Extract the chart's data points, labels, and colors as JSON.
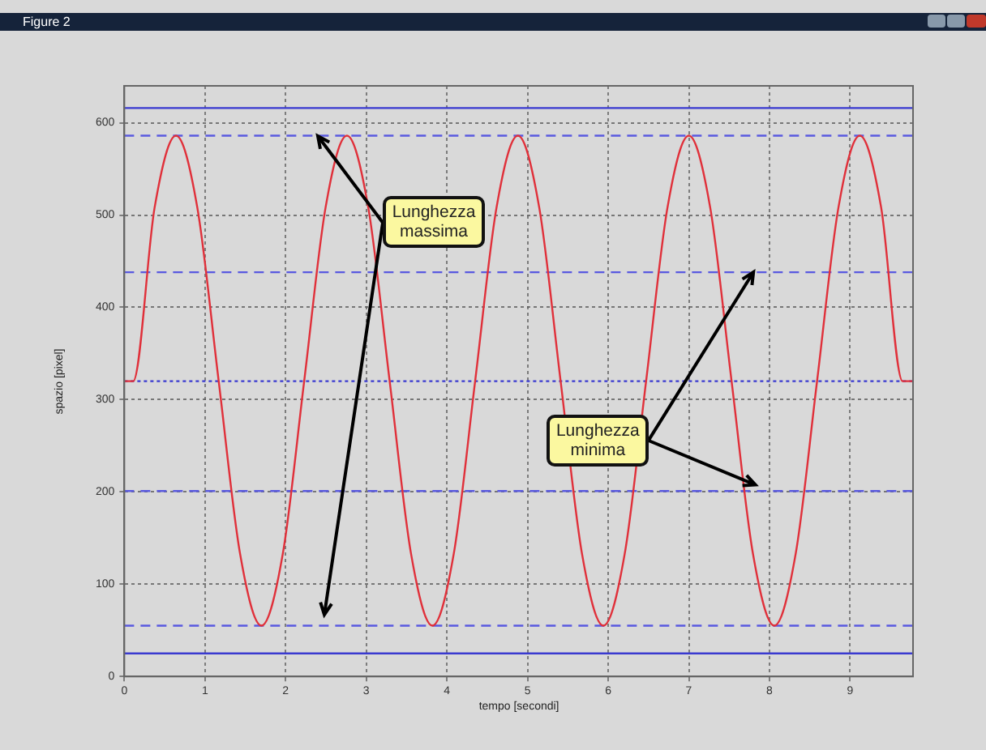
{
  "chart_data": {
    "type": "line",
    "title": "Figure 2",
    "xlabel": "tempo [secondi]",
    "ylabel": "spazio [pixel]",
    "x": [
      0,
      0.11,
      0.375,
      0.64,
      0.905,
      1.17,
      1.435,
      1.7,
      1.965,
      2.23,
      2.495,
      2.76,
      3.025,
      3.29,
      3.555,
      3.82,
      4.085,
      4.35,
      4.615,
      4.88,
      5.145,
      5.41,
      5.675,
      5.94,
      6.205,
      6.47,
      6.735,
      7.0,
      7.265,
      7.53,
      7.795,
      8.06,
      8.325,
      8.59,
      8.855,
      9.12,
      9.385,
      9.65,
      9.78
    ],
    "series": [
      {
        "color": "#e0303a",
        "values": [
          320,
          320,
          508,
          586,
          508,
          320,
          133,
          55,
          133,
          320,
          508,
          586,
          508,
          320,
          133,
          55,
          133,
          320,
          508,
          586,
          508,
          320,
          133,
          55,
          133,
          320,
          508,
          586,
          508,
          320,
          133,
          55,
          133,
          320,
          508,
          586,
          508,
          320,
          320
        ]
      }
    ],
    "xlim": [
      0,
      9.78
    ],
    "xticks": [
      0,
      1,
      2,
      3,
      4,
      5,
      6,
      7,
      8,
      9
    ],
    "ylim": [
      0,
      640
    ],
    "yticks": [
      0,
      100,
      200,
      300,
      400,
      500,
      600
    ],
    "grid": true,
    "legend": false,
    "marker": "none",
    "line_style": "solid",
    "ref_lines": [
      {
        "axis": "y",
        "value": 616,
        "color": "#3a3ad0",
        "line_style": "solid"
      },
      {
        "axis": "y",
        "value": 586,
        "color": "#5a5ae0",
        "line_style": "dashed"
      },
      {
        "axis": "y",
        "value": 438,
        "color": "#5a5ae0",
        "line_style": "dashed"
      },
      {
        "axis": "y",
        "value": 320,
        "color": "#3a3ad0",
        "line_style": "dotted"
      },
      {
        "axis": "y",
        "value": 201,
        "color": "#5a5ae0",
        "line_style": "dashed"
      },
      {
        "axis": "y",
        "value": 55,
        "color": "#5a5ae0",
        "line_style": "dashed"
      },
      {
        "axis": "y",
        "value": 25,
        "color": "#3a3ad0",
        "line_style": "solid"
      }
    ],
    "annotations": [
      {
        "text": "Lunghezza\nmassima",
        "x": 2.4,
        "y": 586
      },
      {
        "text": "Lunghezza\nminima",
        "x": 7.8,
        "y": 438
      }
    ]
  }
}
